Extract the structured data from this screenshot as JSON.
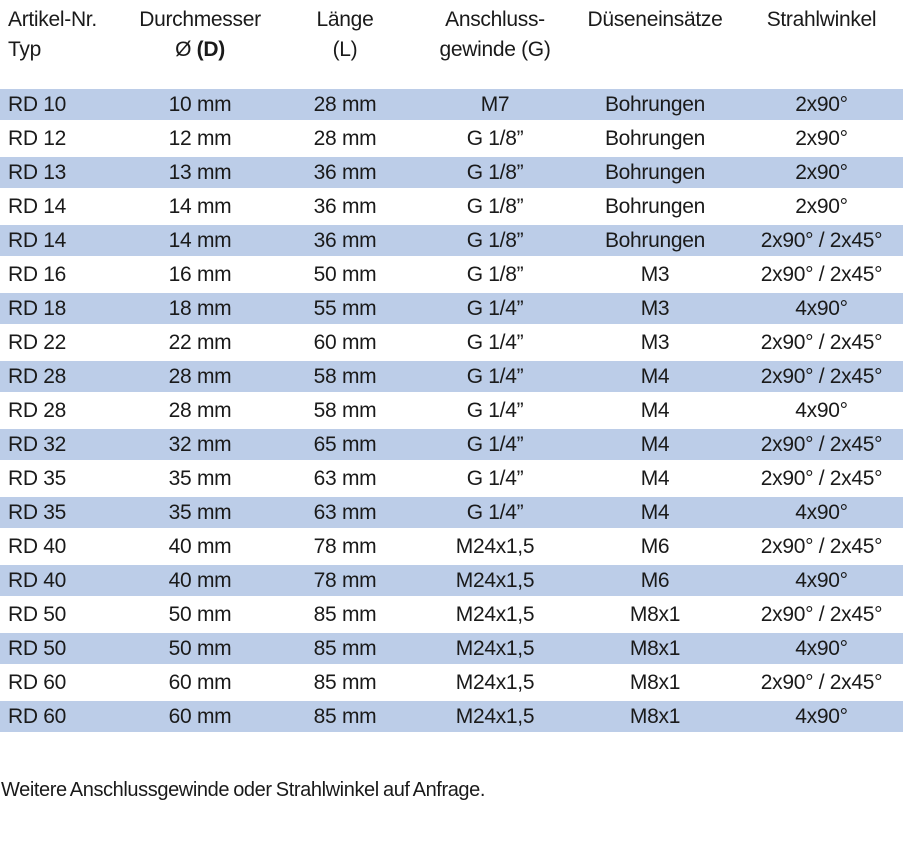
{
  "colors": {
    "row_highlight": "#bccde8",
    "text_color": "#1a1a1a"
  },
  "table": {
    "columns": [
      {
        "id": "artikel",
        "line1": "Artikel-Nr.",
        "line2": "Typ"
      },
      {
        "id": "durchmesser",
        "line1": "Durchmesser",
        "line2": "Ø ",
        "line2_bold": "(D)"
      },
      {
        "id": "laenge",
        "line1": "Länge",
        "line2": "(L)"
      },
      {
        "id": "gewinde",
        "line1": "Anschluss-",
        "line2": "gewinde (G)"
      },
      {
        "id": "einsaetze",
        "line1": "Düseneinsätze"
      },
      {
        "id": "strahlwinkel",
        "line1": "Strahlwinkel"
      }
    ],
    "rows": [
      [
        "RD 10",
        "10 mm",
        "28 mm",
        "M7",
        "Bohrungen",
        "2x90°"
      ],
      [
        "RD 12",
        "12 mm",
        "28 mm",
        "G 1/8”",
        "Bohrungen",
        "2x90°"
      ],
      [
        "RD 13",
        "13 mm",
        "36 mm",
        "G 1/8”",
        "Bohrungen",
        "2x90°"
      ],
      [
        "RD 14",
        "14 mm",
        "36 mm",
        "G 1/8”",
        "Bohrungen",
        "2x90°"
      ],
      [
        "RD 14",
        "14 mm",
        "36 mm",
        "G 1/8”",
        "Bohrungen",
        "2x90° / 2x45°"
      ],
      [
        "RD 16",
        "16 mm",
        "50 mm",
        "G 1/8”",
        "M3",
        "2x90° / 2x45°"
      ],
      [
        "RD 18",
        "18 mm",
        "55 mm",
        "G 1/4”",
        "M3",
        "4x90°"
      ],
      [
        "RD 22",
        "22 mm",
        "60 mm",
        "G 1/4”",
        "M3",
        "2x90° / 2x45°"
      ],
      [
        "RD 28",
        "28 mm",
        "58 mm",
        "G 1/4”",
        "M4",
        "2x90° / 2x45°"
      ],
      [
        "RD 28",
        "28 mm",
        "58 mm",
        "G 1/4”",
        "M4",
        "4x90°"
      ],
      [
        "RD 32",
        "32 mm",
        "65 mm",
        "G 1/4”",
        "M4",
        "2x90° / 2x45°"
      ],
      [
        "RD 35",
        "35 mm",
        "63 mm",
        "G 1/4”",
        "M4",
        "2x90° / 2x45°"
      ],
      [
        "RD 35",
        "35 mm",
        "63 mm",
        "G 1/4”",
        "M4",
        "4x90°"
      ],
      [
        "RD 40",
        "40 mm",
        "78 mm",
        "M24x1,5",
        "M6",
        "2x90° / 2x45°"
      ],
      [
        "RD 40",
        "40 mm",
        "78 mm",
        "M24x1,5",
        "M6",
        "4x90°"
      ],
      [
        "RD 50",
        "50 mm",
        "85 mm",
        "M24x1,5",
        "M8x1",
        "2x90° / 2x45°"
      ],
      [
        "RD 50",
        "50 mm",
        "85 mm",
        "M24x1,5",
        "M8x1",
        "4x90°"
      ],
      [
        "RD 60",
        "60 mm",
        "85 mm",
        "M24x1,5",
        "M8x1",
        "2x90° / 2x45°"
      ],
      [
        "RD 60",
        "60 mm",
        "85 mm",
        "M24x1,5",
        "M8x1",
        "4x90°"
      ]
    ]
  },
  "footer": {
    "note": "Weitere Anschlussgewinde oder Strahlwinkel auf Anfrage."
  }
}
